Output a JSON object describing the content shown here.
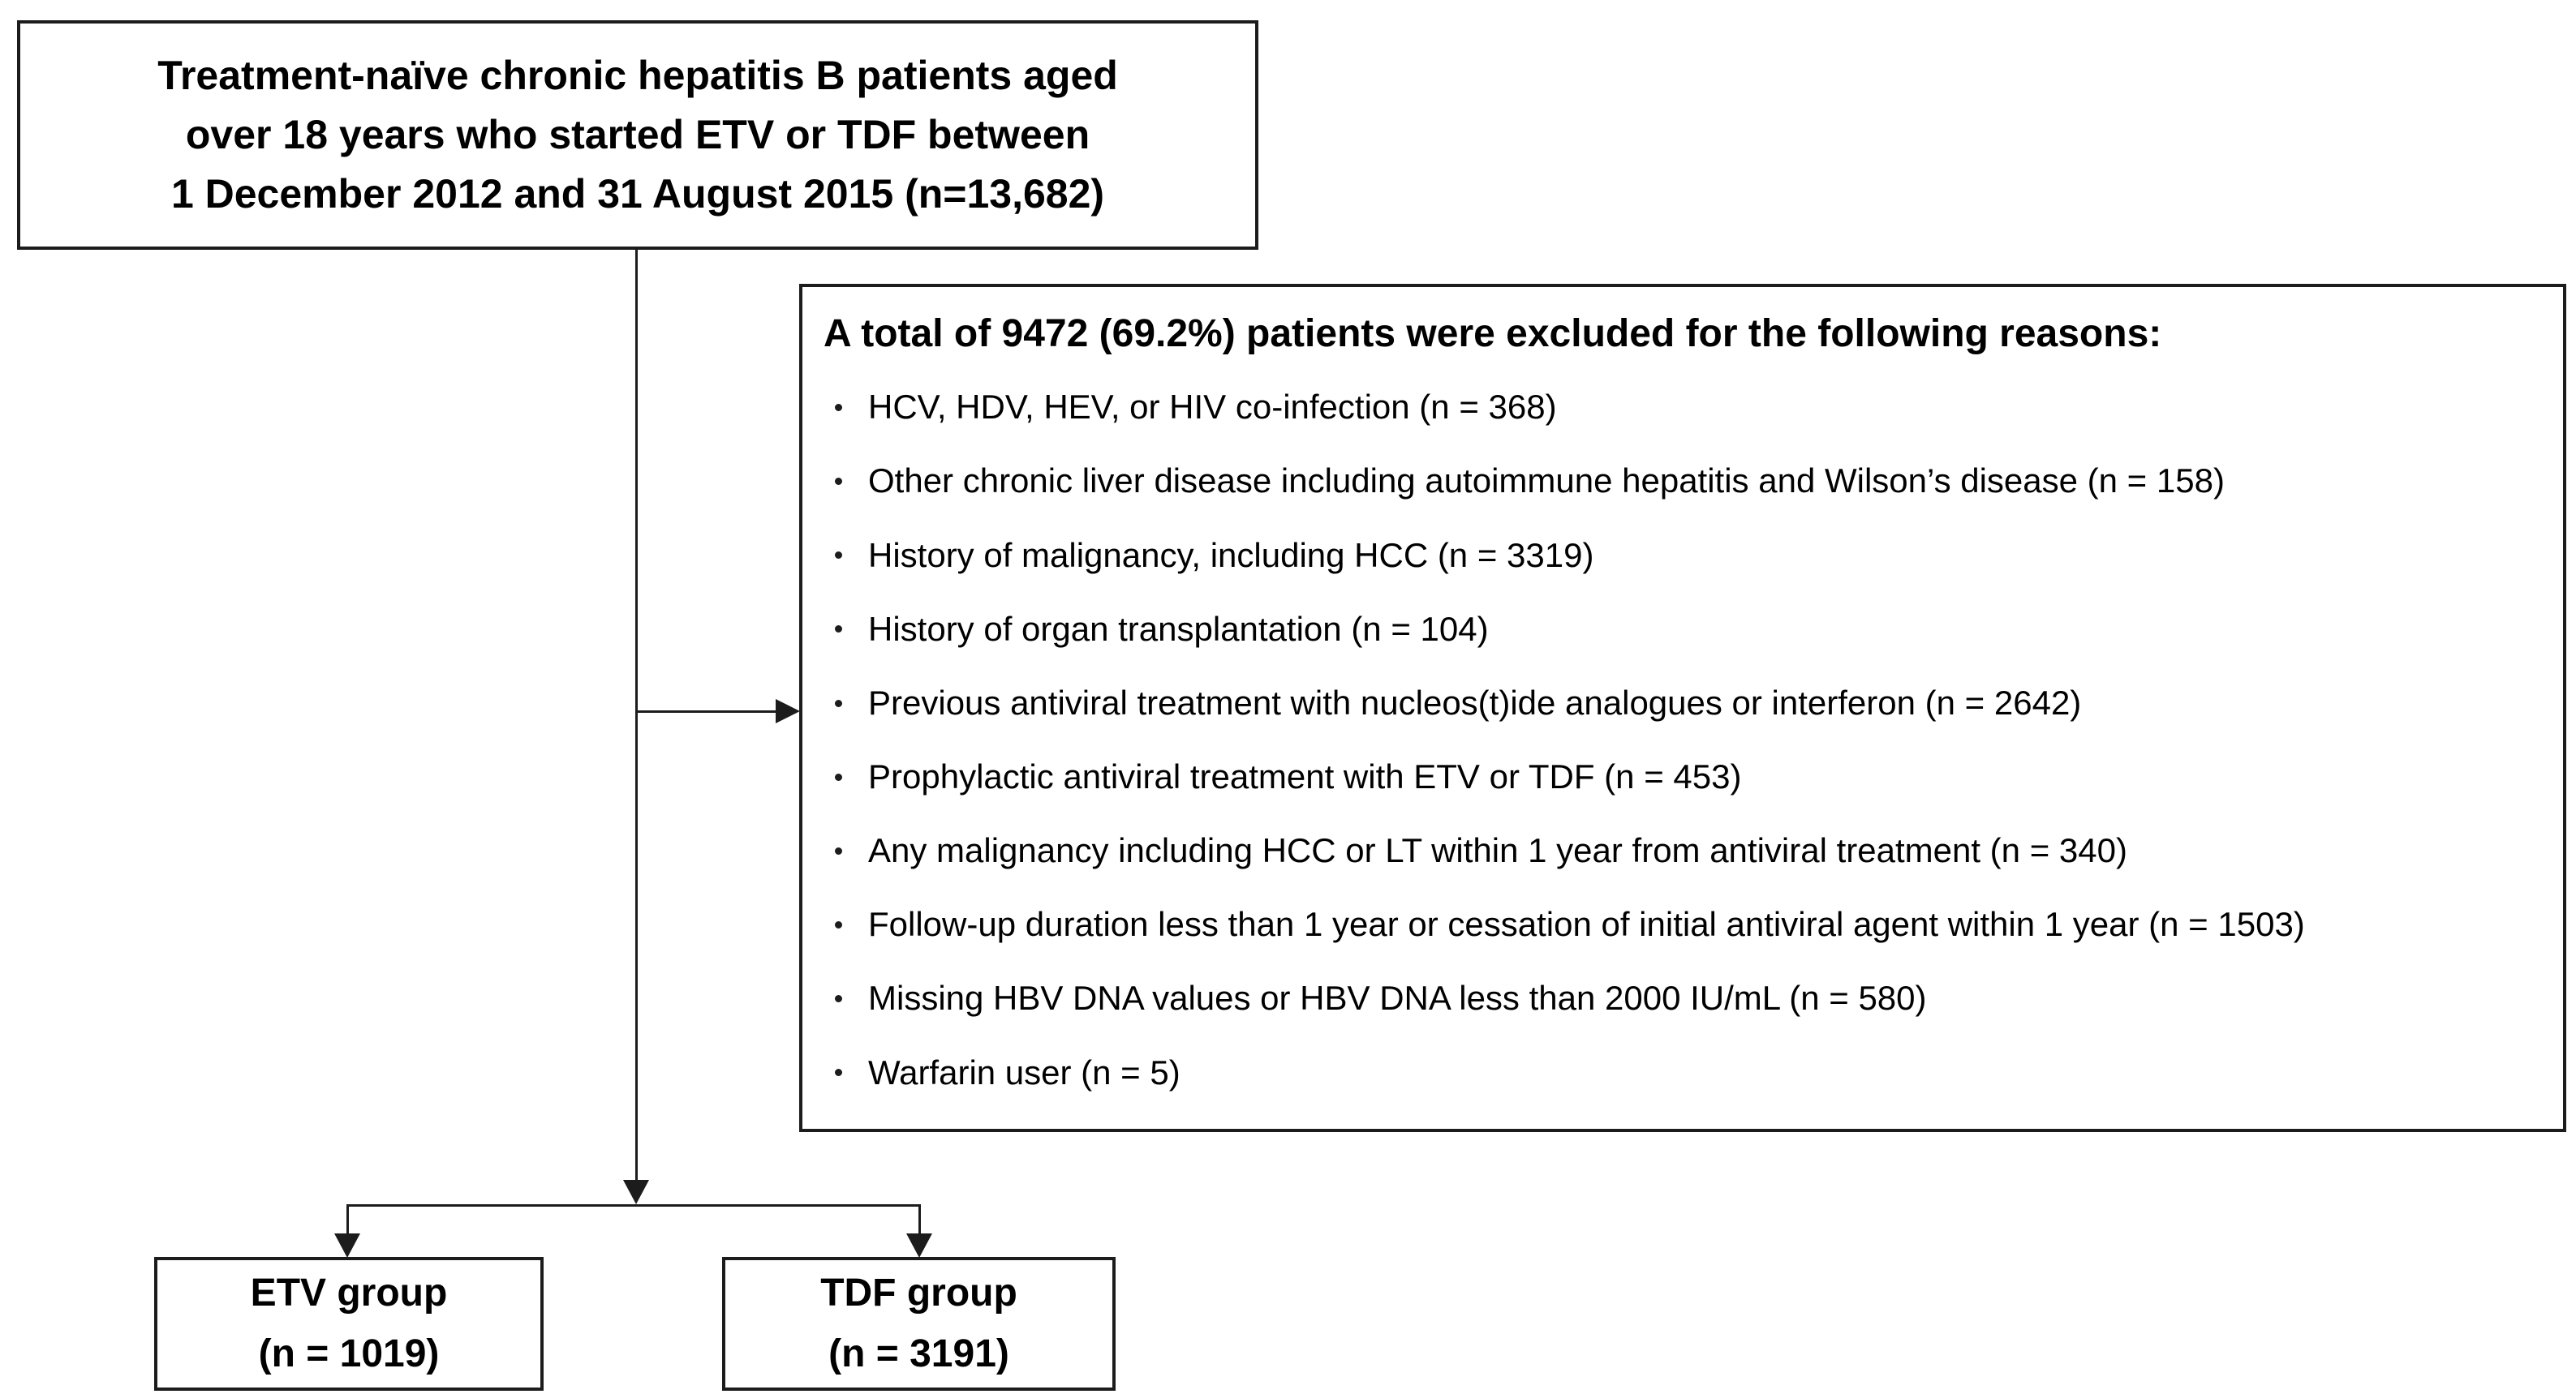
{
  "top_box": {
    "text": "Treatment-naïve chronic hepatitis B patients aged\nover 18 years who started ETV or TDF between\n1 December 2012 and 31 August 2015 (n=13,682)"
  },
  "exclusion_box": {
    "header": "A total of 9472 (69.2%) patients were excluded for the following reasons:",
    "reasons": [
      "HCV, HDV, HEV, or HIV co-infection (n = 368)",
      "Other chronic liver disease including autoimmune hepatitis and Wilson’s disease (n = 158)",
      "History of malignancy, including HCC (n = 3319)",
      "History of organ transplantation (n = 104)",
      "Previous antiviral treatment with nucleos(t)ide analogues or interferon (n = 2642)",
      "Prophylactic antiviral treatment with ETV or TDF (n = 453)",
      "Any malignancy including HCC or LT within 1 year from antiviral treatment (n = 340)",
      "Follow-up duration less than 1 year or cessation of initial antiviral agent within 1 year (n = 1503)",
      "Missing HBV DNA values or HBV DNA less than 2000 IU/mL (n = 580)",
      "Warfarin user (n = 5)"
    ]
  },
  "etv_box": {
    "text": "ETV group\n(n = 1019)"
  },
  "tdf_box": {
    "text": "TDF group\n(n = 3191)"
  },
  "colors": {
    "line": "#1c1c1c",
    "text": "#000000",
    "background": "#ffffff"
  }
}
